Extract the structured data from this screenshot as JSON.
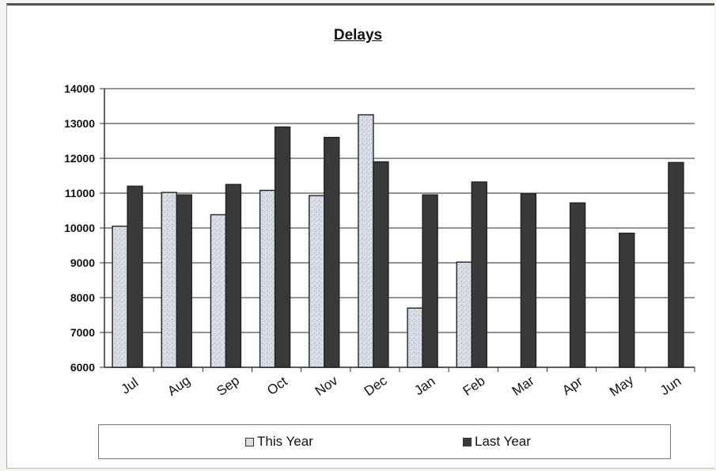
{
  "chart_data": {
    "type": "bar",
    "title": "Delays",
    "xlabel": "",
    "ylabel": "",
    "categories": [
      "Jul",
      "Aug",
      "Sep",
      "Oct",
      "Nov",
      "Dec",
      "Jan",
      "Feb",
      "Mar",
      "Apr",
      "May",
      "Jun"
    ],
    "series": [
      {
        "name": "This Year",
        "color": "#d8dde6",
        "values": [
          10050,
          11020,
          10380,
          11080,
          10930,
          13250,
          7700,
          9020,
          null,
          null,
          null,
          null
        ]
      },
      {
        "name": "Last Year",
        "color": "#3a3a3a",
        "values": [
          11200,
          10950,
          11250,
          12900,
          12600,
          11900,
          10950,
          11320,
          10980,
          10720,
          9850,
          11880
        ]
      }
    ],
    "ylim": [
      6000,
      14000
    ],
    "yticks": [
      6000,
      7000,
      8000,
      9000,
      10000,
      11000,
      12000,
      13000,
      14000
    ],
    "grid": true,
    "legend_position": "bottom"
  }
}
